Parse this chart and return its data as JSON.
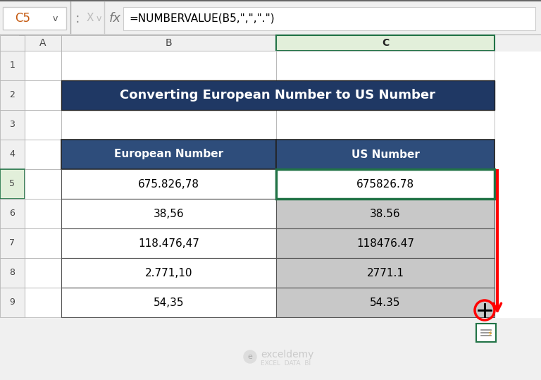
{
  "title": "Converting European Number to US Number",
  "title_bg": "#1F3864",
  "title_color": "#FFFFFF",
  "header_bg": "#2E4D7B",
  "header_color": "#FFFFFF",
  "col1_header": "European Number",
  "col2_header": "US Number",
  "rows": [
    [
      "675.826,78",
      "675826.78"
    ],
    [
      "38,56",
      "38.56"
    ],
    [
      "118.476,47",
      "118476.47"
    ],
    [
      "2.771,10",
      "2771.1"
    ],
    [
      "54,35",
      "54.35"
    ]
  ],
  "row_bg_white": "#FFFFFF",
  "row_bg_gray": "#C8C8C8",
  "formula_bar_text": "=NUMBERVALUE(B5,\",\",\".\")",
  "cell_ref": "C5",
  "bg_color": "#FFFFFF",
  "top_bar_bg": "#F0F0F0",
  "watermark_color": "#BBBBBB",
  "red_arrow_color": "#FF0000",
  "green_border_color": "#217346",
  "col_c_selected_bg": "#E2EFDA"
}
